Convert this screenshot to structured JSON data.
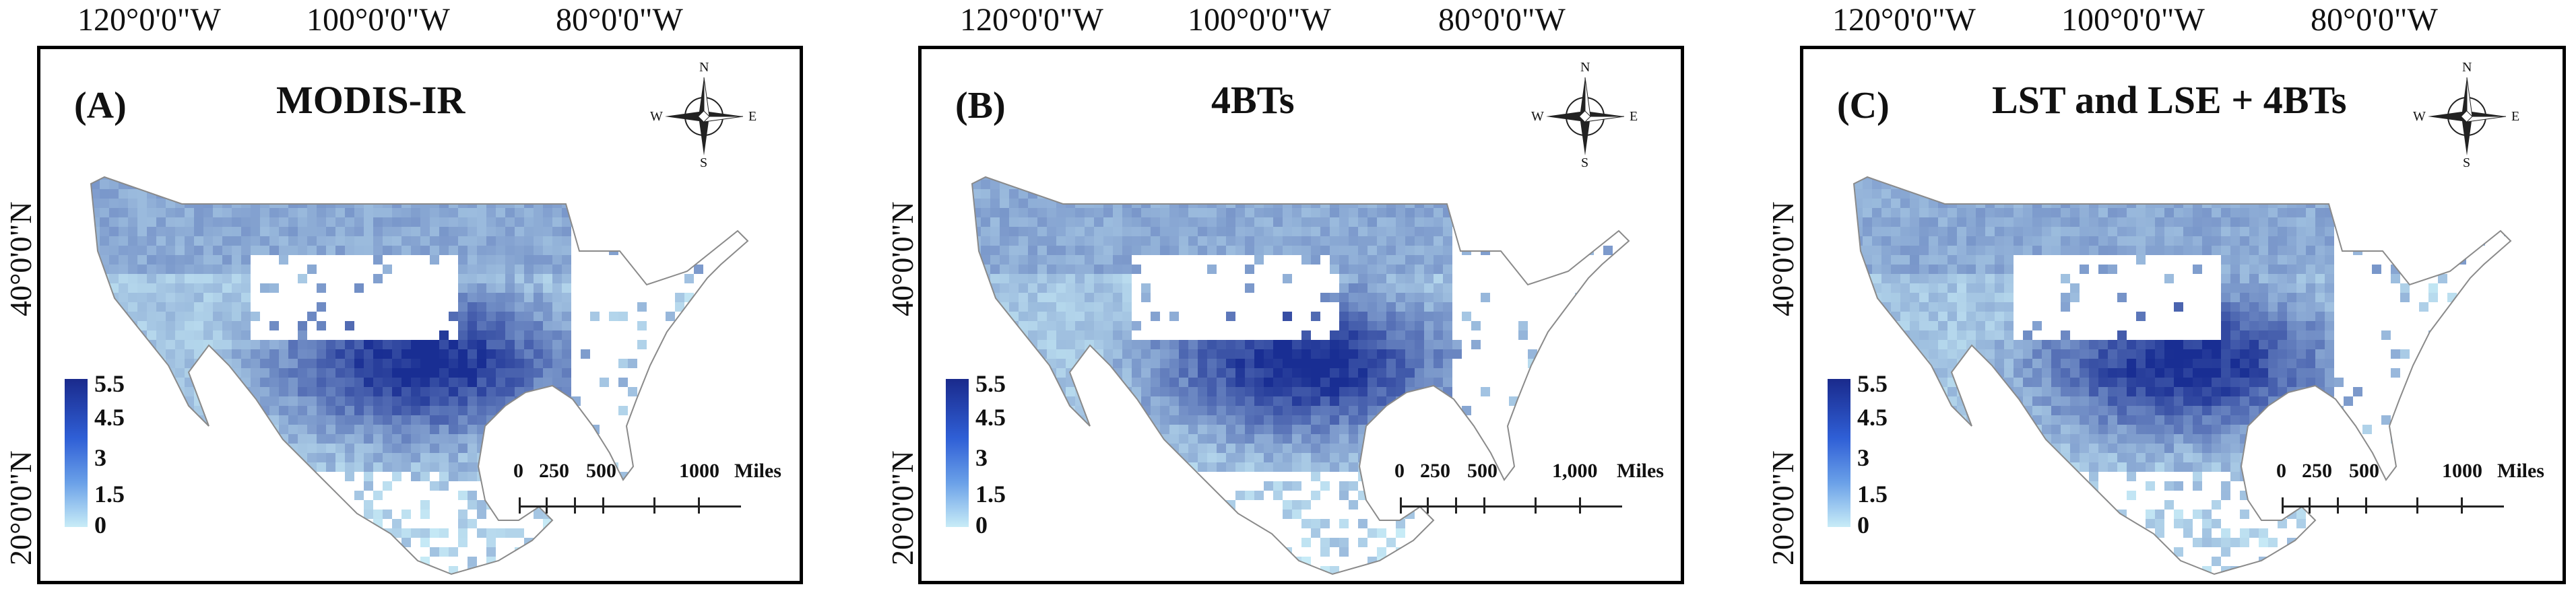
{
  "longitude_labels": [
    "120°0'0\"W",
    "100°0'0\"W",
    "80°0'0\"W"
  ],
  "latitude_labels": [
    "40°0'0\"N",
    "20°0'0\"N"
  ],
  "panels": [
    {
      "letter": "(A)",
      "title": "MODIS-IR",
      "legend_ticks": [
        "5.5",
        "4.5",
        "3",
        "1.5",
        "0"
      ],
      "scale_labels": [
        "0",
        "250",
        "500",
        "1000",
        "Miles"
      ]
    },
    {
      "letter": "(B)",
      "title": "4BTs",
      "legend_ticks": [
        "5.5",
        "4.5",
        "3",
        "1.5",
        "0"
      ],
      "scale_labels": [
        "0",
        "250",
        "500",
        "1,000",
        "Miles"
      ]
    },
    {
      "letter": "(C)",
      "title": "LST and LSE + 4BTs",
      "legend_ticks": [
        "5.5",
        "4.5",
        "3",
        "1.5",
        "0"
      ],
      "scale_labels": [
        "0",
        "250",
        "500",
        "1000",
        "Miles"
      ]
    }
  ],
  "compass": {
    "n": "N",
    "s": "S",
    "e": "E",
    "w": "W"
  },
  "colors": {
    "ramp_high": "#1a2a8c",
    "ramp_mid": "#2f5fd6",
    "ramp_low": "#c8ecf7",
    "coast": "#8a8a8a"
  }
}
